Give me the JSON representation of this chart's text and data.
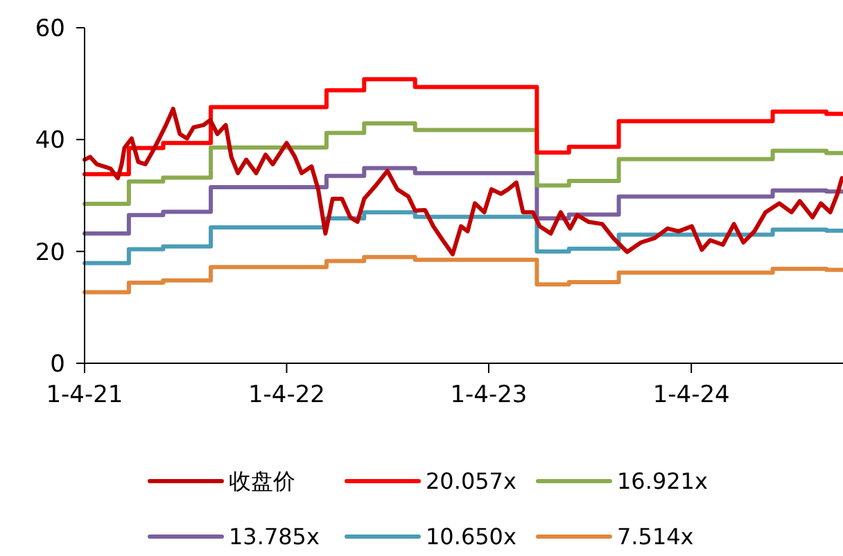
{
  "chart_data": {
    "type": "line",
    "legend": "bottom",
    "xlim": [
      "2021-04-01",
      "2024-12-31"
    ],
    "ylim": [
      0,
      60
    ],
    "yticks": [
      0,
      20,
      40,
      60
    ],
    "xticks": [
      {
        "value": "2021-04-01",
        "label": "1-4-21"
      },
      {
        "value": "2022-04-01",
        "label": "1-4-22"
      },
      {
        "value": "2023-04-01",
        "label": "1-4-23"
      },
      {
        "value": "2024-04-01",
        "label": "1-4-24"
      }
    ],
    "series": [
      {
        "name": "收盘价",
        "color": "#c00000",
        "x": [
          "2021-04-01",
          "2021-04-11",
          "2021-04-23",
          "2021-05-06",
          "2021-05-18",
          "2021-05-31",
          "2021-06-07",
          "2021-06-12",
          "2021-06-25",
          "2021-07-07",
          "2021-07-20",
          "2021-08-01",
          "2021-08-14",
          "2021-08-26",
          "2021-09-08",
          "2021-09-20",
          "2021-10-03",
          "2021-10-15",
          "2021-11-02",
          "2021-11-14",
          "2021-11-27",
          "2021-12-12",
          "2021-12-22",
          "2022-01-03",
          "2022-01-18",
          "2022-02-05",
          "2022-02-22",
          "2022-03-07",
          "2022-04-01",
          "2022-04-16",
          "2022-04-28",
          "2022-05-16",
          "2022-05-28",
          "2022-06-10",
          "2022-06-23",
          "2022-07-10",
          "2022-07-25",
          "2022-08-07",
          "2022-08-19",
          "2022-09-10",
          "2022-09-30",
          "2022-10-18",
          "2022-11-07",
          "2022-11-19",
          "2022-12-07",
          "2022-12-22",
          "2023-01-08",
          "2023-01-26",
          "2023-02-10",
          "2023-02-22",
          "2023-03-07",
          "2023-03-24",
          "2023-04-06",
          "2023-04-23",
          "2023-05-06",
          "2023-05-21",
          "2023-06-02",
          "2023-06-20",
          "2023-07-02",
          "2023-07-22",
          "2023-08-09",
          "2023-08-26",
          "2023-09-08",
          "2023-09-28",
          "2023-10-23",
          "2023-11-12",
          "2023-12-07",
          "2024-01-01",
          "2024-01-26",
          "2024-02-18",
          "2024-03-09",
          "2024-04-02",
          "2024-04-20",
          "2024-05-05",
          "2024-05-28",
          "2024-06-17",
          "2024-07-04",
          "2024-07-24",
          "2024-08-13",
          "2024-09-07",
          "2024-09-29",
          "2024-10-14",
          "2024-11-06",
          "2024-11-21",
          "2024-12-08",
          "2024-12-21",
          "2024-12-29"
        ],
        "values": [
          36.4,
          36.9,
          35.6,
          35.2,
          34.8,
          33.1,
          35.6,
          38.5,
          40.2,
          36.0,
          35.6,
          37.7,
          40.2,
          42.6,
          45.5,
          41.0,
          40.2,
          42.2,
          42.6,
          43.5,
          41.0,
          42.6,
          36.9,
          34.0,
          36.4,
          34.0,
          37.3,
          35.6,
          39.4,
          36.9,
          34.0,
          35.2,
          31.1,
          23.2,
          29.4,
          29.4,
          26.1,
          25.3,
          29.4,
          31.9,
          34.4,
          31.1,
          29.8,
          27.3,
          27.4,
          24.5,
          22.0,
          19.5,
          24.5,
          23.6,
          28.6,
          27.0,
          31.1,
          30.3,
          31.1,
          32.3,
          27.0,
          27.0,
          24.5,
          23.2,
          27.0,
          24.1,
          26.5,
          25.3,
          24.9,
          22.4,
          19.9,
          21.6,
          22.4,
          24.1,
          23.6,
          24.5,
          20.3,
          22.0,
          21.2,
          24.9,
          21.6,
          23.6,
          27.0,
          28.6,
          27.0,
          29.0,
          26.1,
          28.6,
          27.0,
          30.3,
          33.1
        ]
      },
      {
        "name": "20.057x",
        "color": "#ff0000",
        "type": "step",
        "x": [
          "2021-04-01",
          "2021-06-20",
          "2021-08-21",
          "2021-11-15",
          "2022-06-12",
          "2022-08-19",
          "2022-11-19",
          "2023-06-27",
          "2023-08-24",
          "2023-11-22",
          "2024-08-26",
          "2024-12-01",
          "2024-12-31"
        ],
        "values": [
          33.8,
          38.5,
          39.4,
          45.8,
          48.8,
          50.8,
          49.4,
          37.7,
          38.7,
          43.3,
          45.0,
          44.6,
          44.6
        ]
      },
      {
        "name": "16.921x",
        "color": "#8aab4e",
        "type": "step",
        "x": [
          "2021-04-01",
          "2021-06-20",
          "2021-08-21",
          "2021-11-15",
          "2022-06-12",
          "2022-08-19",
          "2022-11-19",
          "2023-06-27",
          "2023-08-24",
          "2023-11-22",
          "2024-08-26",
          "2024-12-01",
          "2024-12-31"
        ],
        "values": [
          28.5,
          32.5,
          33.2,
          38.6,
          41.2,
          42.9,
          41.7,
          31.8,
          32.6,
          36.5,
          38.0,
          37.6,
          37.6
        ]
      },
      {
        "name": "13.785x",
        "color": "#7a609e",
        "type": "step",
        "x": [
          "2021-04-01",
          "2021-06-20",
          "2021-08-21",
          "2021-11-15",
          "2022-06-12",
          "2022-08-19",
          "2022-11-19",
          "2023-06-27",
          "2023-08-24",
          "2023-11-22",
          "2024-08-26",
          "2024-12-01",
          "2024-12-31"
        ],
        "values": [
          23.2,
          26.5,
          27.1,
          31.5,
          33.5,
          34.9,
          34.0,
          25.9,
          26.6,
          29.8,
          30.9,
          30.7,
          30.7
        ]
      },
      {
        "name": "10.650x",
        "color": "#4a9cb5",
        "type": "step",
        "x": [
          "2021-04-01",
          "2021-06-20",
          "2021-08-21",
          "2021-11-15",
          "2022-06-12",
          "2022-08-19",
          "2022-11-19",
          "2023-06-27",
          "2023-08-24",
          "2023-11-22",
          "2024-08-26",
          "2024-12-01",
          "2024-12-31"
        ],
        "values": [
          17.9,
          20.4,
          20.9,
          24.3,
          25.9,
          27.0,
          26.2,
          20.0,
          20.5,
          23.0,
          23.9,
          23.7,
          23.7
        ]
      },
      {
        "name": "7.514x",
        "color": "#e0873c",
        "type": "step",
        "x": [
          "2021-04-01",
          "2021-06-20",
          "2021-08-21",
          "2021-11-15",
          "2022-06-12",
          "2022-08-19",
          "2022-11-19",
          "2023-06-27",
          "2023-08-24",
          "2023-11-22",
          "2024-08-26",
          "2024-12-01",
          "2024-12-31"
        ],
        "values": [
          12.7,
          14.4,
          14.8,
          17.2,
          18.3,
          19.0,
          18.5,
          14.1,
          14.5,
          16.2,
          16.9,
          16.7,
          16.7
        ]
      }
    ]
  }
}
